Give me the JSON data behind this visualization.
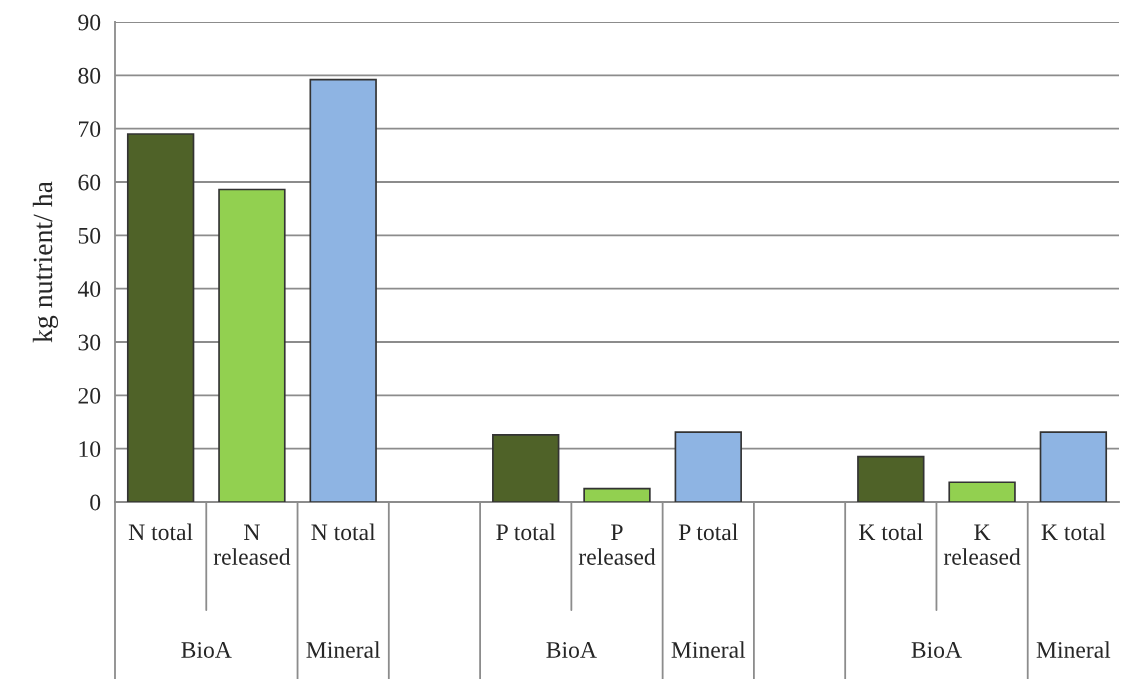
{
  "chart_data": {
    "type": "bar",
    "ylabel": "kg nutrient/ ha",
    "categories": [
      "N total",
      "N released",
      "N total",
      null,
      "P total",
      "P released",
      "P total",
      null,
      "K total",
      "K released",
      "K total"
    ],
    "values": [
      69,
      58.6,
      79.2,
      null,
      12.6,
      2.5,
      13.1,
      null,
      8.5,
      3.7,
      13.1
    ],
    "colors": [
      "#4f6228",
      "#92d050",
      "#8eb4e3",
      null,
      "#4f6228",
      "#92d050",
      "#8eb4e3",
      null,
      "#4f6228",
      "#92d050",
      "#8eb4e3"
    ],
    "ylim": [
      0,
      90
    ],
    "yticks": [
      0,
      10,
      20,
      30,
      40,
      50,
      60,
      70,
      80,
      90
    ],
    "grid": "y",
    "annotations": [
      "BioA",
      "Mineral",
      "BioA",
      "Mineral",
      "BioA",
      "Mineral"
    ]
  }
}
